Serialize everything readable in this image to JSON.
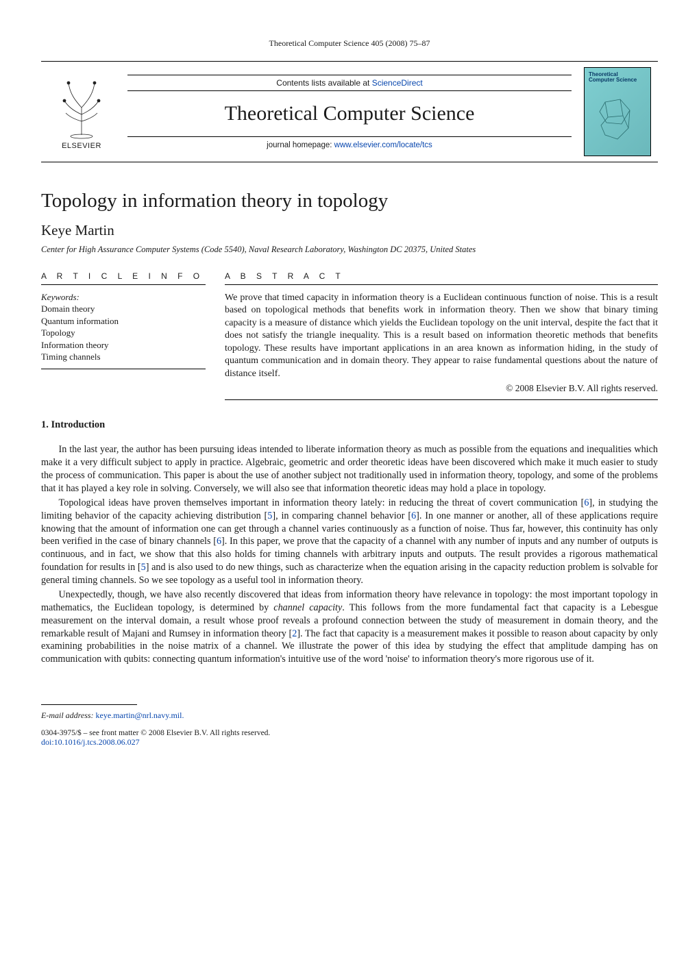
{
  "colors": {
    "link": "#0645ad",
    "text": "#1a1a1a",
    "cover_bg_from": "#7fcfd1",
    "cover_bg_to": "#6bb8bb",
    "cover_label": "#0a3a66"
  },
  "header": {
    "running_head": "Theoretical Computer Science 405 (2008) 75–87"
  },
  "masthead": {
    "publisher_name": "ELSEVIER",
    "contents_prefix": "Contents lists available at ",
    "contents_link_text": "ScienceDirect",
    "journal_title": "Theoretical Computer Science",
    "homepage_prefix": "journal homepage: ",
    "homepage_link_text": "www.elsevier.com/locate/tcs",
    "cover_label_line1": "Theoretical",
    "cover_label_line2": "Computer Science"
  },
  "article": {
    "title": "Topology in information theory in topology",
    "author": "Keye Martin",
    "affiliation": "Center for High Assurance Computer Systems (Code 5540), Naval Research Laboratory, Washington DC 20375, United States"
  },
  "info": {
    "section_label": "A R T I C L E   I N F O",
    "keywords_label": "Keywords:",
    "keywords": [
      "Domain theory",
      "Quantum information",
      "Topology",
      "Information theory",
      "Timing channels"
    ]
  },
  "abstract": {
    "section_label": "A B S T R A C T",
    "text": "We prove that timed capacity in information theory is a Euclidean continuous function of noise. This is a result based on topological methods that benefits work in information theory. Then we show that binary timing capacity is a measure of distance which yields the Euclidean topology on the unit interval, despite the fact that it does not satisfy the triangle inequality. This is a result based on information theoretic methods that benefits topology. These results have important applications in an area known as information hiding, in the study of quantum communication and in domain theory. They appear to raise fundamental questions about the nature of distance itself.",
    "copyright": "© 2008 Elsevier B.V. All rights reserved."
  },
  "sections": {
    "intro_heading": "1.  Introduction",
    "paragraphs": [
      {
        "segments": [
          {
            "t": "text",
            "v": "In the last year, the author has been pursuing ideas intended to liberate information theory as much as possible from the equations and inequalities which make it a very difficult subject to apply in practice. Algebraic, geometric and order theoretic ideas have been discovered which make it much easier to study the process of communication. This paper is about the use of another subject not traditionally used in information theory, topology, and some of the problems that it has played a key role in solving. Conversely, we will also see that information theoretic ideas may hold a place in topology."
          }
        ]
      },
      {
        "segments": [
          {
            "t": "text",
            "v": "Topological ideas have proven themselves important in information theory lately: in reducing the threat of covert communication ["
          },
          {
            "t": "link",
            "v": "6"
          },
          {
            "t": "text",
            "v": "], in studying the limiting behavior of the capacity achieving distribution ["
          },
          {
            "t": "link",
            "v": "5"
          },
          {
            "t": "text",
            "v": "], in comparing channel behavior ["
          },
          {
            "t": "link",
            "v": "6"
          },
          {
            "t": "text",
            "v": "]. In one manner or another, all of these applications require knowing that the amount of information one can get through a channel varies continuously as a function of noise. Thus far, however, this continuity has only been verified in the case of binary channels ["
          },
          {
            "t": "link",
            "v": "6"
          },
          {
            "t": "text",
            "v": "]. In this paper, we prove that the capacity of a channel with any number of inputs and any number of outputs is continuous, and in fact, we show that this also holds for timing channels with arbitrary inputs and outputs. The result provides a rigorous mathematical foundation for results in ["
          },
          {
            "t": "link",
            "v": "5"
          },
          {
            "t": "text",
            "v": "] and is also used to do new things, such as characterize when the equation arising in the capacity reduction problem is solvable for general timing channels. So we see topology as a useful tool in information theory."
          }
        ]
      },
      {
        "segments": [
          {
            "t": "text",
            "v": "Unexpectedly, though, we have also recently discovered that ideas from information theory have relevance in topology: the most important topology in mathematics, the Euclidean topology, is determined by "
          },
          {
            "t": "italic",
            "v": "channel capacity"
          },
          {
            "t": "text",
            "v": ". This follows from the more fundamental fact that capacity is a Lebesgue measurement on the interval domain, a result whose proof reveals a profound connection between the study of measurement in domain theory, and the remarkable result of Majani and Rumsey in information theory ["
          },
          {
            "t": "link",
            "v": "2"
          },
          {
            "t": "text",
            "v": "]. The fact that capacity is a measurement makes it possible to reason about capacity by only examining probabilities in the noise matrix of a channel. We illustrate the power of this idea by studying the effect that amplitude damping has on communication with qubits: connecting quantum information's intuitive use of the word 'noise' to information theory's more rigorous use of it."
          }
        ]
      }
    ]
  },
  "footer": {
    "email_label": "E-mail address: ",
    "email_link_text": "keye.martin@nrl.navy.mil.",
    "front_matter": "0304-3975/$ – see front matter © 2008 Elsevier B.V. All rights reserved.",
    "doi_text": "doi:10.1016/j.tcs.2008.06.027"
  }
}
